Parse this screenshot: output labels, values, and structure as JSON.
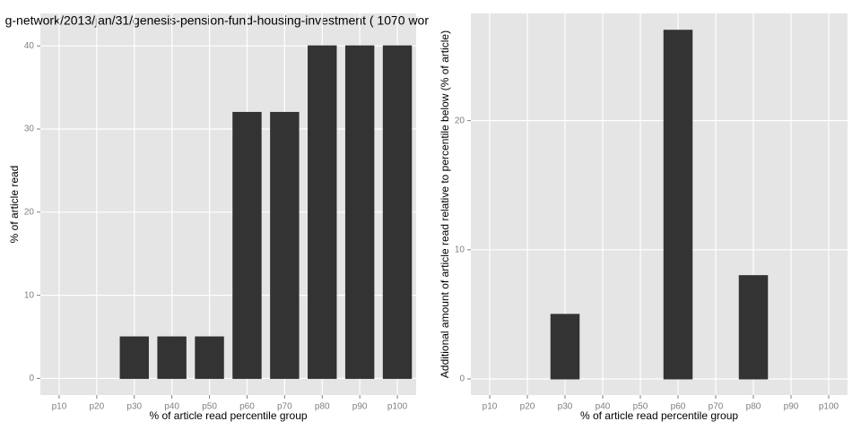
{
  "chart_data": [
    {
      "type": "bar",
      "title": "g-network/2013/jan/31/genesis-pension-fund-housing-investment ( 1070 wor",
      "x_label": "% of article read percentile group",
      "y_label": "% of article read",
      "categories": [
        "p10",
        "p20",
        "p30",
        "p40",
        "p50",
        "p60",
        "p70",
        "p80",
        "p90",
        "p100"
      ],
      "values": [
        0,
        0,
        5,
        5,
        5,
        32,
        32,
        40,
        40,
        40
      ],
      "color": "#333333",
      "ylim": [
        -2,
        43.9
      ],
      "yticks": [
        0,
        10,
        20,
        30,
        40
      ],
      "grid": true
    },
    {
      "type": "bar",
      "x_label": "% of article read percentile group",
      "y_label": "Additional amount of article read relative to percentile below (% of article)",
      "categories": [
        "p10",
        "p20",
        "p30",
        "p40",
        "p50",
        "p60",
        "p70",
        "p80",
        "p90",
        "p100"
      ],
      "values": [
        0,
        0,
        5,
        0,
        0,
        27,
        0,
        8,
        0,
        0
      ],
      "color": "#333333",
      "ylim": [
        -1.25,
        28.3
      ],
      "yticks": [
        0,
        10,
        20
      ],
      "grid": true
    }
  ]
}
